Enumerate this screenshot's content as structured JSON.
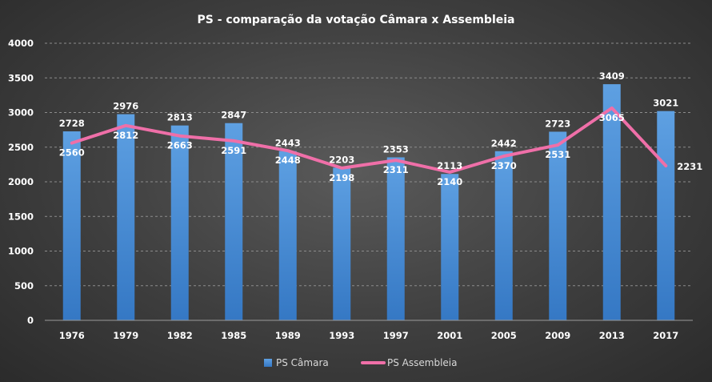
{
  "chart_data": {
    "type": "bar",
    "title": "PS - comparação da votação Câmara x Assembleia",
    "categories": [
      "1976",
      "1979",
      "1982",
      "1985",
      "1989",
      "1993",
      "1997",
      "2001",
      "2005",
      "2009",
      "2013",
      "2017"
    ],
    "series": [
      {
        "name": "PS Câmara",
        "kind": "bar",
        "color": "#4a8fd6",
        "values": [
          2728,
          2976,
          2813,
          2847,
          2443,
          2203,
          2353,
          2113,
          2442,
          2723,
          3409,
          3021
        ]
      },
      {
        "name": "PS Assembleia",
        "kind": "line",
        "color": "#ef6fa8",
        "values": [
          2560,
          2812,
          2663,
          2591,
          2448,
          2198,
          2311,
          2140,
          2370,
          2531,
          3065,
          2231
        ]
      }
    ],
    "ylim": [
      0,
      4000
    ],
    "yticks": [
      0,
      500,
      1000,
      1500,
      2000,
      2500,
      3000,
      3500,
      4000
    ],
    "xlabel": "",
    "ylabel": "",
    "legend": "bottom",
    "grid": true
  }
}
